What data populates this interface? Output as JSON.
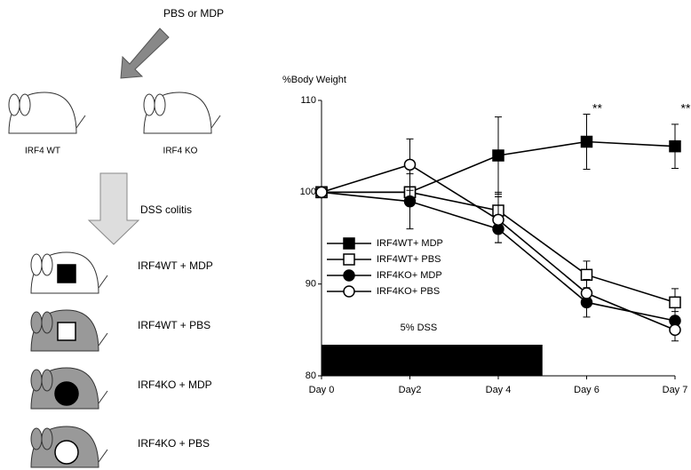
{
  "diagram": {
    "treatment": "PBS or MDP",
    "mice": [
      "IRF4 WT",
      "IRF4 KO"
    ],
    "induction": "DSS colitis",
    "groups": [
      "IRF4WT + MDP",
      "IRF4WT + PBS",
      "IRF4KO + MDP",
      "IRF4KO + PBS"
    ]
  },
  "chart_data": {
    "type": "line",
    "y_label": "%Body Weight",
    "dss_label": "5% DSS",
    "categories": [
      "Day 0",
      "Day2",
      "Day 4",
      "Day 6",
      "Day 7"
    ],
    "significance": [
      null,
      null,
      null,
      "**",
      "**"
    ],
    "ylim": [
      80,
      110
    ],
    "yticks": [
      80,
      90,
      100,
      110
    ],
    "series": [
      {
        "name": "IRF4WT+ MDP",
        "color": "#000000",
        "marker": "square",
        "filled": true,
        "values": [
          100,
          100,
          104,
          105.5,
          105
        ],
        "errors": [
          0,
          0,
          4.2,
          3,
          2.4
        ]
      },
      {
        "name": "IRF4WT+ PBS",
        "color": "#000000",
        "marker": "square",
        "filled": false,
        "values": [
          100,
          100,
          98,
          91,
          88
        ],
        "errors": [
          0,
          0,
          2,
          1.5,
          1.5
        ]
      },
      {
        "name": "IRF4KO+ MDP",
        "color": "#000000",
        "marker": "circle",
        "filled": true,
        "values": [
          100,
          99,
          96,
          88,
          86
        ],
        "errors": [
          0,
          3,
          1.5,
          1.6,
          1
        ]
      },
      {
        "name": "IRF4KO+ PBS",
        "color": "#000000",
        "marker": "circle",
        "filled": false,
        "values": [
          100,
          103,
          97,
          89,
          85
        ],
        "errors": [
          0,
          2.8,
          2.5,
          1.5,
          1.2
        ]
      }
    ]
  }
}
